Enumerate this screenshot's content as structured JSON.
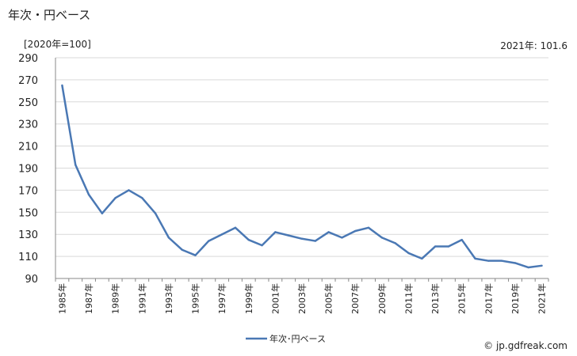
{
  "header": {
    "title": "年次・円ベース",
    "unit_note": "[2020年=100]",
    "latest_value": "2021年: 101.6"
  },
  "footer": {
    "source": "© jp.gdfreak.com"
  },
  "colors": {
    "series": "#4a78b4",
    "grid": "#d9d9d9",
    "axis": "#888888"
  },
  "chart_data": {
    "type": "line",
    "title": "年次・円ベース",
    "xlabel": "",
    "ylabel": "",
    "ylim": [
      90,
      290
    ],
    "yticks": [
      90,
      110,
      130,
      150,
      170,
      190,
      210,
      230,
      250,
      270,
      290
    ],
    "grid": true,
    "legend_position": "bottom",
    "x": [
      "1985年",
      "1986年",
      "1987年",
      "1988年",
      "1989年",
      "1990年",
      "1991年",
      "1992年",
      "1993年",
      "1994年",
      "1995年",
      "1996年",
      "1997年",
      "1998年",
      "1999年",
      "2000年",
      "2001年",
      "2002年",
      "2003年",
      "2004年",
      "2005年",
      "2006年",
      "2007年",
      "2008年",
      "2009年",
      "2010年",
      "2011年",
      "2012年",
      "2013年",
      "2014年",
      "2015年",
      "2016年",
      "2017年",
      "2018年",
      "2019年",
      "2020年",
      "2021年"
    ],
    "x_tick_labels": [
      "1985年",
      "1987年",
      "1989年",
      "1991年",
      "1993年",
      "1995年",
      "1997年",
      "1999年",
      "2001年",
      "2003年",
      "2005年",
      "2007年",
      "2009年",
      "2011年",
      "2013年",
      "2015年",
      "2017年",
      "2019年",
      "2021年"
    ],
    "series": [
      {
        "name": "年次･円ベース",
        "values": [
          265,
          193,
          166,
          149,
          163,
          170,
          163,
          149,
          127,
          116,
          111,
          124,
          130,
          136,
          125,
          120,
          132,
          129,
          126,
          124,
          132,
          127,
          133,
          136,
          127,
          122,
          113,
          108,
          119,
          119,
          125,
          108,
          106,
          106,
          104,
          100,
          101.6
        ]
      }
    ]
  }
}
